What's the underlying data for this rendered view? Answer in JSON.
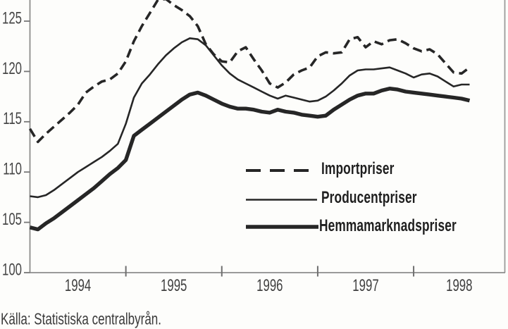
{
  "figure": {
    "kind": "scanned-statistics-line-chart",
    "paper_color": "#fdfdfb",
    "line_color": "#262626",
    "axis_color": "#8c8c8c",
    "tick_label_color": "#454545"
  },
  "chart_data": {
    "type": "line",
    "title": "",
    "xlabel": "",
    "ylabel": "",
    "grid": false,
    "legend_position": "inside-center-right",
    "x_unit": "month",
    "x_start": "1994-01",
    "x_end": "1998-08",
    "x_tick_labels": [
      "1994",
      "1995",
      "1996",
      "1997",
      "1998"
    ],
    "y_ticks": [
      100,
      105,
      110,
      115,
      120,
      125
    ],
    "y_tick_labels": [
      "100",
      "105",
      "110",
      "115",
      "120",
      "125"
    ],
    "ylim": [
      100,
      127.3
    ],
    "series": [
      {
        "name": "Importpriser",
        "style": "dashed",
        "color": "#262626",
        "values": [
          114.3,
          113.0,
          113.8,
          114.5,
          115.2,
          115.9,
          116.7,
          117.9,
          118.5,
          119.0,
          119.2,
          119.8,
          121.0,
          123.0,
          124.5,
          125.8,
          127.1,
          127.2,
          126.6,
          126.1,
          125.5,
          124.5,
          122.7,
          121.7,
          121.0,
          120.9,
          122.0,
          122.4,
          121.2,
          120.1,
          118.8,
          118.4,
          118.9,
          119.7,
          120.1,
          120.4,
          121.5,
          121.9,
          121.8,
          121.9,
          123.2,
          123.4,
          122.4,
          123.0,
          122.7,
          123.1,
          123.2,
          122.8,
          122.3,
          122.0,
          122.2,
          121.7,
          120.8,
          119.9,
          119.8,
          120.4
        ]
      },
      {
        "name": "Producentpriser",
        "style": "solid-thin",
        "color": "#262626",
        "values": [
          107.6,
          107.5,
          107.7,
          108.2,
          108.8,
          109.4,
          110.0,
          110.5,
          111.0,
          111.5,
          112.1,
          112.8,
          114.8,
          117.4,
          118.8,
          119.7,
          120.7,
          121.6,
          122.3,
          122.9,
          123.3,
          123.2,
          122.6,
          121.6,
          120.6,
          119.8,
          119.2,
          118.8,
          118.4,
          118.0,
          117.6,
          117.3,
          117.6,
          117.4,
          117.2,
          117.0,
          117.1,
          117.5,
          118.1,
          118.8,
          119.6,
          120.1,
          120.2,
          120.2,
          120.3,
          120.4,
          120.1,
          119.8,
          119.4,
          119.7,
          119.8,
          119.5,
          119.0,
          118.5,
          118.7,
          118.7
        ]
      },
      {
        "name": "Hemmamarknadspriser",
        "style": "solid-thick",
        "color": "#262626",
        "values": [
          104.5,
          104.3,
          104.9,
          105.4,
          106.0,
          106.6,
          107.2,
          107.8,
          108.4,
          109.1,
          109.8,
          110.4,
          111.2,
          113.6,
          114.2,
          114.8,
          115.4,
          116.0,
          116.6,
          117.2,
          117.7,
          117.9,
          117.6,
          117.2,
          116.8,
          116.5,
          116.3,
          116.3,
          116.2,
          116.0,
          115.9,
          116.2,
          116.0,
          115.9,
          115.7,
          115.6,
          115.5,
          115.6,
          116.2,
          116.7,
          117.2,
          117.6,
          117.8,
          117.8,
          118.1,
          118.3,
          118.2,
          118.0,
          117.9,
          117.8,
          117.7,
          117.6,
          117.5,
          117.4,
          117.3,
          117.1
        ]
      }
    ],
    "source_note": "Källa: Statistiska centralbyrån."
  }
}
